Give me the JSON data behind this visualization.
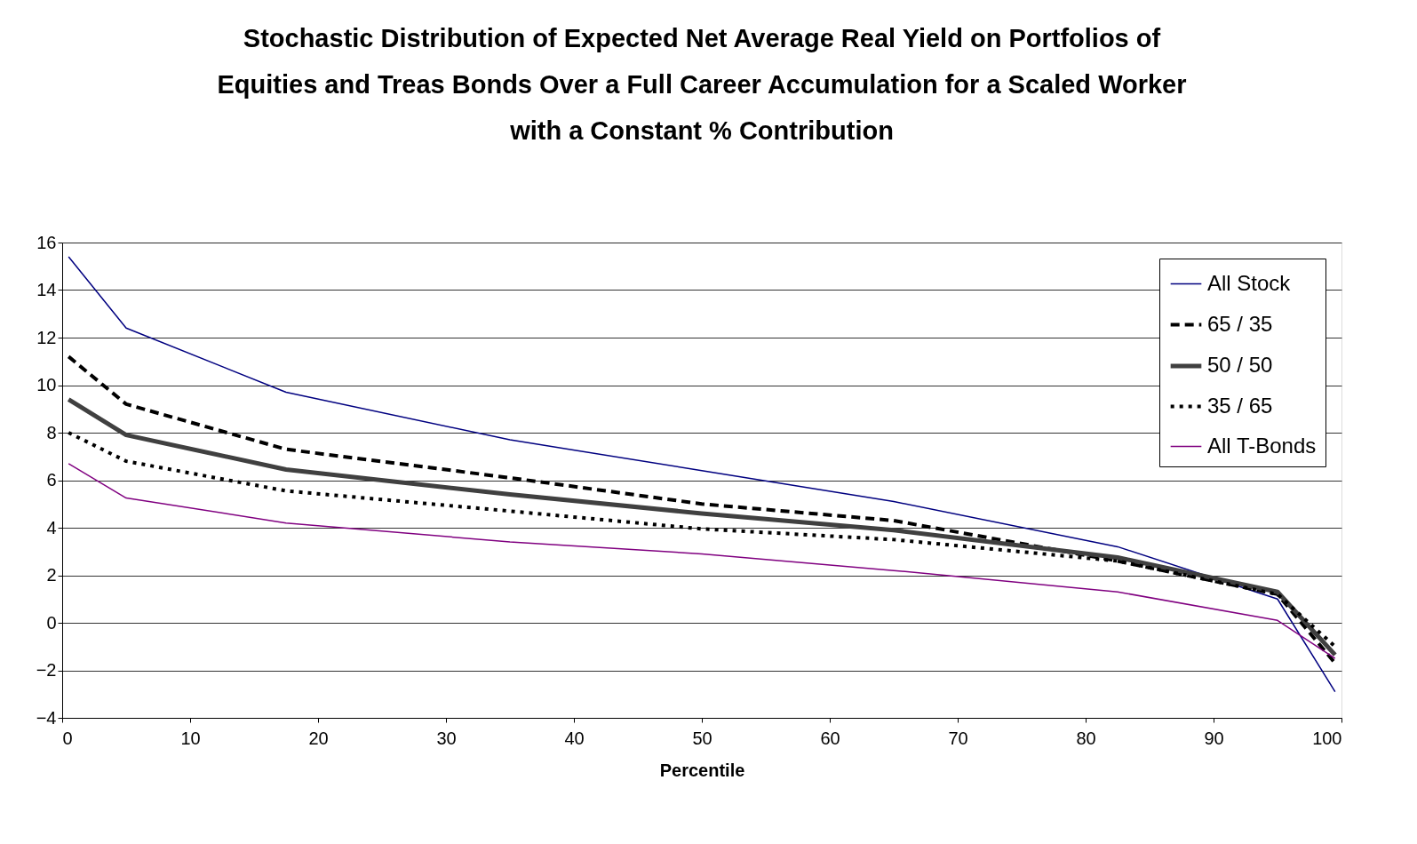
{
  "chart_data": {
    "type": "line",
    "title": "Stochastic Distribution of Expected Net Average Real Yield on Portfolios of Equities and Treas Bonds Over a Full Career Accumulation for a Scaled Worker with a Constant % Contribution",
    "xlabel": "Percentile",
    "x": [
      0.5,
      5,
      17.5,
      35,
      50,
      65,
      82.5,
      95,
      99.5
    ],
    "series": [
      {
        "name": "All Stock",
        "color": "#000080",
        "line_style": "solid",
        "values": [
          15.4,
          12.4,
          9.7,
          7.7,
          6.4,
          5.1,
          3.2,
          1.0,
          -2.9
        ]
      },
      {
        "name": "65 / 35",
        "color": "#000000",
        "line_style": "dashed",
        "values": [
          11.2,
          9.2,
          7.3,
          6.1,
          5.0,
          4.3,
          2.6,
          1.2,
          -1.7
        ]
      },
      {
        "name": "50 / 50",
        "color": "#404040",
        "line_style": "solid",
        "values": [
          9.4,
          7.9,
          6.45,
          5.4,
          4.6,
          3.9,
          2.75,
          1.3,
          -1.35
        ]
      },
      {
        "name": "35 / 65",
        "color": "#000000",
        "line_style": "dotted",
        "values": [
          8.0,
          6.8,
          5.55,
          4.7,
          3.95,
          3.5,
          2.6,
          1.2,
          -1.0
        ]
      },
      {
        "name": "All T-Bonds",
        "color": "#800080",
        "line_style": "solid",
        "values": [
          6.7,
          5.25,
          4.2,
          3.4,
          2.9,
          2.2,
          1.3,
          0.1,
          -1.5
        ]
      }
    ],
    "xlim": [
      0,
      100
    ],
    "xticks": [
      0,
      10,
      20,
      30,
      40,
      50,
      60,
      70,
      80,
      90,
      100
    ],
    "ylim": [
      -4,
      16
    ],
    "yticks": [
      -4,
      -2,
      0,
      2,
      4,
      6,
      8,
      10,
      12,
      14,
      16
    ],
    "grid": "y",
    "legend": "top right"
  }
}
